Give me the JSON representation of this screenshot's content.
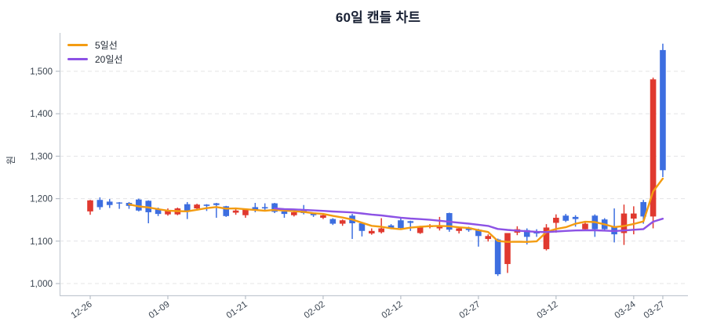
{
  "title": "60일 캔들 차트",
  "y_axis_label": "원",
  "legend": {
    "position": "top-left",
    "items": [
      {
        "label": "5일선",
        "color": "#F39C12"
      },
      {
        "label": "20일선",
        "color": "#8C52E5"
      }
    ]
  },
  "colors": {
    "up_candle": "#E0392F",
    "down_candle": "#3D6EE0",
    "ma5_line": "#F39C12",
    "ma20_line": "#8C52E5",
    "grid": "#E4E4E6",
    "spine": "#C3CAD2",
    "tick": "#B8BFC8",
    "tick_text": "#3A4450",
    "title_text": "#1A2235",
    "background": "#FFFFFF"
  },
  "chart_data": {
    "type": "candlestick",
    "title": "60일 캔들 차트",
    "xlabel": "",
    "ylabel": "원",
    "grid": true,
    "legend_position": "top-left",
    "ylim": [
      970,
      1585
    ],
    "yticks": [
      1000,
      1100,
      1200,
      1300,
      1400,
      1500
    ],
    "ytick_labels": [
      "1,000",
      "1,100",
      "1,200",
      "1,300",
      "1,400",
      "1,500"
    ],
    "x_tick_positions": [
      0,
      8,
      16,
      24,
      32,
      40,
      48,
      56,
      59
    ],
    "x_tick_labels": [
      "12-26",
      "01-09",
      "01-21",
      "02-02",
      "02-12",
      "02-27",
      "03-12",
      "03-24",
      "03-27"
    ],
    "candle_convention": "red = up (close > open), blue = down — Korean market colors",
    "ohlc": [
      [
        1170,
        1197,
        1162,
        1196
      ],
      [
        1197,
        1203,
        1174,
        1180
      ],
      [
        1193,
        1199,
        1178,
        1185
      ],
      [
        1191,
        1192,
        1176,
        1189
      ],
      [
        1190,
        1192,
        1176,
        1183
      ],
      [
        1198,
        1200,
        1170,
        1172
      ],
      [
        1195,
        1196,
        1142,
        1168
      ],
      [
        1176,
        1179,
        1159,
        1164
      ],
      [
        1163,
        1177,
        1160,
        1172
      ],
      [
        1163,
        1179,
        1161,
        1177
      ],
      [
        1187,
        1192,
        1152,
        1170
      ],
      [
        1177,
        1188,
        1175,
        1186
      ],
      [
        1186,
        1187,
        1171,
        1183
      ],
      [
        1189,
        1190,
        1155,
        1185
      ],
      [
        1182,
        1183,
        1157,
        1159
      ],
      [
        1167,
        1176,
        1162,
        1172
      ],
      [
        1161,
        1177,
        1155,
        1176
      ],
      [
        1180,
        1190,
        1168,
        1174
      ],
      [
        1180,
        1189,
        1172,
        1177
      ],
      [
        1189,
        1190,
        1166,
        1169
      ],
      [
        1170,
        1172,
        1155,
        1164
      ],
      [
        1161,
        1172,
        1158,
        1168
      ],
      [
        1175,
        1185,
        1163,
        1166
      ],
      [
        1165,
        1167,
        1157,
        1161
      ],
      [
        1155,
        1163,
        1152,
        1161
      ],
      [
        1152,
        1154,
        1138,
        1141
      ],
      [
        1141,
        1151,
        1136,
        1149
      ],
      [
        1160,
        1164,
        1105,
        1142
      ],
      [
        1142,
        1144,
        1111,
        1124
      ],
      [
        1118,
        1130,
        1115,
        1124
      ],
      [
        1121,
        1154,
        1118,
        1130
      ],
      [
        1137,
        1140,
        1128,
        1131
      ],
      [
        1149,
        1154,
        1128,
        1131
      ],
      [
        1147,
        1148,
        1124,
        1143
      ],
      [
        1119,
        1136,
        1117,
        1134
      ],
      [
        1133,
        1140,
        1130,
        1137
      ],
      [
        1130,
        1157,
        1125,
        1134
      ],
      [
        1166,
        1167,
        1122,
        1127
      ],
      [
        1124,
        1132,
        1118,
        1130
      ],
      [
        1132,
        1134,
        1122,
        1126
      ],
      [
        1127,
        1129,
        1087,
        1112
      ],
      [
        1105,
        1116,
        1099,
        1112
      ],
      [
        1104,
        1106,
        1018,
        1022
      ],
      [
        1046,
        1119,
        1025,
        1119
      ],
      [
        1120,
        1135,
        1114,
        1128
      ],
      [
        1126,
        1130,
        1092,
        1110
      ],
      [
        1122,
        1128,
        1110,
        1118
      ],
      [
        1081,
        1140,
        1078,
        1132
      ],
      [
        1143,
        1163,
        1120,
        1155
      ],
      [
        1160,
        1164,
        1145,
        1148
      ],
      [
        1157,
        1161,
        1134,
        1152
      ],
      [
        1128,
        1144,
        1125,
        1141
      ],
      [
        1160,
        1163,
        1110,
        1128
      ],
      [
        1151,
        1154,
        1124,
        1128
      ],
      [
        1134,
        1177,
        1097,
        1116
      ],
      [
        1119,
        1186,
        1091,
        1165
      ],
      [
        1153,
        1182,
        1116,
        1165
      ],
      [
        1192,
        1197,
        1141,
        1158
      ],
      [
        1158,
        1485,
        1130,
        1481
      ],
      [
        1550,
        1565,
        1251,
        1267
      ]
    ],
    "overlays": [
      {
        "name": "5일선",
        "type": "sma_of_close",
        "window": 5,
        "color": "#F39C12"
      },
      {
        "name": "20일선",
        "type": "sma_of_close",
        "window": 20,
        "color": "#8C52E5"
      }
    ]
  }
}
